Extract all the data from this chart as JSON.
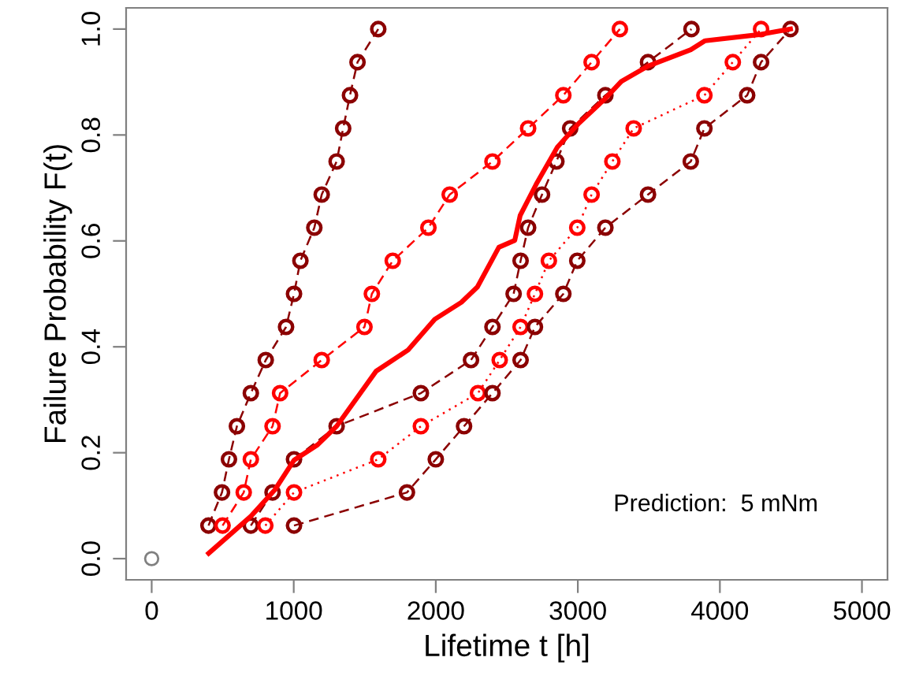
{
  "chart_data": {
    "type": "line",
    "xlabel": "Lifetime t [h]",
    "ylabel": "Failure Probability F(t)",
    "xlim": [
      -180,
      5180
    ],
    "ylim": [
      -0.04,
      1.04
    ],
    "xticks": [
      0,
      1000,
      2000,
      3000,
      4000,
      5000
    ],
    "yticks": [
      {
        "value": 0,
        "label": "0.0"
      },
      {
        "value": 0.2,
        "label": "0.2"
      },
      {
        "value": 0.4,
        "label": "0.4"
      },
      {
        "value": 0.6,
        "label": "0.6"
      },
      {
        "value": 0.8,
        "label": "0.8"
      },
      {
        "value": 1.0,
        "label": "1.0"
      }
    ],
    "grid": false,
    "legend": false,
    "annotations": [
      "Prediction:  5 mNm"
    ],
    "series": [
      {
        "color": "#8b0000",
        "marker": "circle",
        "line_style": "dashed",
        "x": [
          400,
          495,
          544,
          600,
          698,
          803,
          946,
          1002,
          1047,
          1145,
          1197,
          1302,
          1348,
          1396,
          1449,
          1595
        ],
        "values": [
          0.0625,
          0.125,
          0.1875,
          0.25,
          0.3125,
          0.375,
          0.4375,
          0.5,
          0.5625,
          0.625,
          0.6875,
          0.75,
          0.8125,
          0.875,
          0.9375,
          1.0
        ]
      },
      {
        "color": "#ff0000",
        "marker": "circle",
        "line_style": "dashed",
        "x": [
          499,
          648,
          698,
          851,
          904,
          1197,
          1498,
          1550,
          1697,
          1948,
          2098,
          2399,
          2650,
          2898,
          3097,
          3296
        ],
        "values": [
          0.0625,
          0.125,
          0.1875,
          0.25,
          0.3125,
          0.375,
          0.4375,
          0.5,
          0.5625,
          0.625,
          0.6875,
          0.75,
          0.8125,
          0.875,
          0.9375,
          1.0
        ]
      },
      {
        "color": "#8b0000",
        "marker": "circle",
        "line_style": "dashed",
        "x": [
          698,
          851,
          1002,
          1302,
          1895,
          2248,
          2399,
          2548,
          2597,
          2650,
          2748,
          2849,
          2946,
          3194,
          3494,
          3800
        ],
        "values": [
          0.0625,
          0.125,
          0.1875,
          0.25,
          0.3125,
          0.375,
          0.4375,
          0.5,
          0.5625,
          0.625,
          0.6875,
          0.75,
          0.8125,
          0.875,
          0.9375,
          1.0
        ]
      },
      {
        "color": "#ff0000",
        "marker": "circle",
        "line_style": "dotted",
        "x": [
          800,
          1002,
          1595,
          1895,
          2297,
          2450,
          2597,
          2698,
          2796,
          2996,
          3097,
          3243,
          3393,
          3891,
          4091,
          4290
        ],
        "values": [
          0.0625,
          0.125,
          0.1875,
          0.25,
          0.3125,
          0.375,
          0.4375,
          0.5,
          0.5625,
          0.625,
          0.6875,
          0.75,
          0.8125,
          0.875,
          0.9375,
          1.0
        ]
      },
      {
        "color": "#8b0000",
        "marker": "circle",
        "line_style": "dashed",
        "x": [
          1002,
          1797,
          2000,
          2199,
          2399,
          2597,
          2698,
          2898,
          2996,
          3194,
          3494,
          3795,
          3891,
          4192,
          4290,
          4497
        ],
        "values": [
          0.0625,
          0.125,
          0.1875,
          0.25,
          0.3125,
          0.375,
          0.4375,
          0.5,
          0.5625,
          0.625,
          0.6875,
          0.75,
          0.8125,
          0.875,
          0.9375,
          1.0
        ]
      },
      {
        "color": "#ff0000",
        "marker": "none",
        "line_style": "solid",
        "x": [
          401,
          698,
          867,
          1002,
          1168,
          1302,
          1580,
          1805,
          1993,
          2180,
          2293,
          2444,
          2556,
          2594,
          2707,
          2856,
          3007,
          3194,
          3306,
          3494,
          3795,
          3896,
          4290,
          4497
        ],
        "values": [
          0.01,
          0.08,
          0.13,
          0.186,
          0.215,
          0.25,
          0.354,
          0.394,
          0.452,
          0.484,
          0.513,
          0.588,
          0.601,
          0.648,
          0.707,
          0.777,
          0.822,
          0.869,
          0.901,
          0.93,
          0.961,
          0.978,
          0.99,
          1.0
        ]
      },
      {
        "type": "scatter",
        "color": "#808080",
        "marker": "circle",
        "x": [
          0
        ],
        "values": [
          0
        ]
      }
    ]
  }
}
